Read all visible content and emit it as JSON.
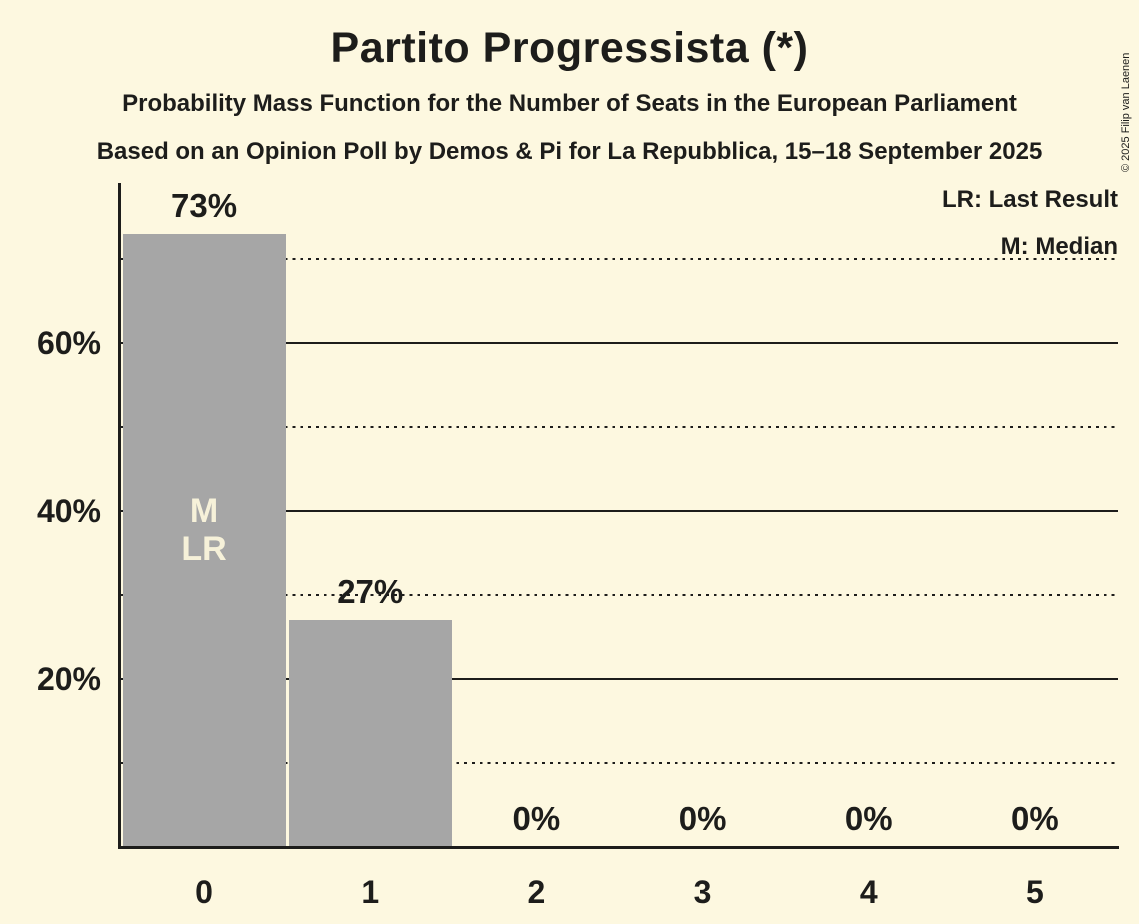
{
  "title": "Partito Progressista (*)",
  "subtitle1": "Probability Mass Function for the Number of Seats in the European Parliament",
  "subtitle2": "Based on an Opinion Poll by Demos & Pi for La Repubblica, 15–18 September 2025",
  "copyright": "© 2025 Filip van Laenen",
  "legend": {
    "lr": "LR: Last Result",
    "m": "M: Median"
  },
  "chart_data": {
    "type": "bar",
    "title": "Partito Progressista (*)",
    "xlabel": "",
    "ylabel": "",
    "categories": [
      "0",
      "1",
      "2",
      "3",
      "4",
      "5"
    ],
    "values": [
      73,
      27,
      0,
      0,
      0,
      0
    ],
    "value_labels": [
      "73%",
      "27%",
      "0%",
      "0%",
      "0%",
      "0%"
    ],
    "ylim": [
      0,
      79
    ],
    "yticks": [
      {
        "pct": 60,
        "label": "60%"
      },
      {
        "pct": 40,
        "label": "40%"
      },
      {
        "pct": 20,
        "label": "20%"
      }
    ],
    "solid_gridlines_pct": [
      60,
      40,
      20
    ],
    "dotted_gridlines_pct": [
      70,
      50,
      30,
      10
    ],
    "annotations": [
      {
        "category": 0,
        "lines": "M\nLR",
        "at_pct": 40
      }
    ],
    "legend_position": "top-right",
    "grid": "horizontal",
    "colors": {
      "background": "#fdf8e0",
      "bar": "#a6a6a6",
      "text": "#1d1d1b",
      "bar_annotation_text": "#f6f1d9"
    }
  }
}
